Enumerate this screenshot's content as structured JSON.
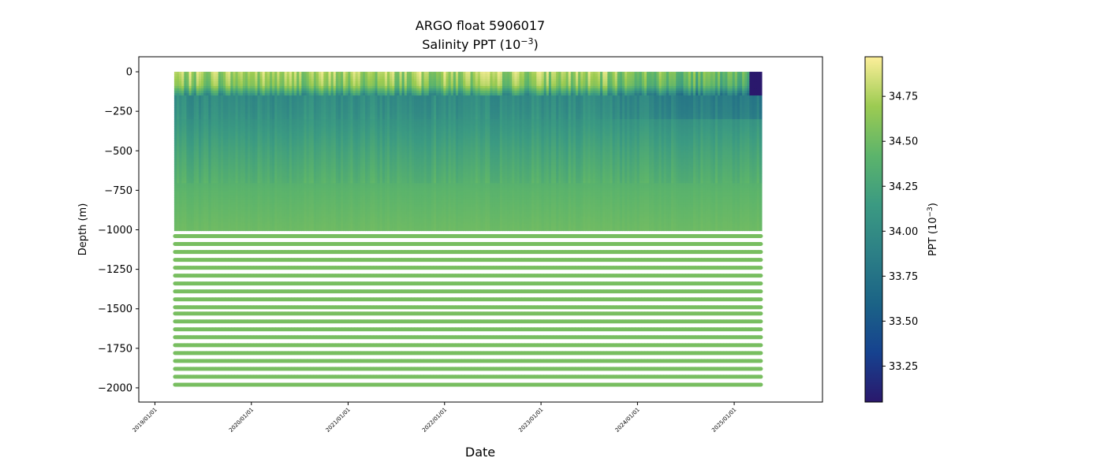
{
  "chart_data": {
    "type": "heatmap",
    "title": "ARGO float 5906017",
    "subtitle_prefix": "Salinity PPT (10",
    "subtitle_exp": "−3",
    "subtitle_suffix": ")",
    "xlabel": "Date",
    "ylabel": "Depth (m)",
    "x_range": [
      "2018-11-01",
      "2025-12-01"
    ],
    "data_x_range": [
      "2019-03-15",
      "2025-04-15"
    ],
    "ylim": [
      -2090,
      95
    ],
    "x_ticks": [
      {
        "date": "2019-01-01",
        "label": "2019/01/01"
      },
      {
        "date": "2020-01-01",
        "label": "2020/01/01"
      },
      {
        "date": "2021-01-01",
        "label": "2021/01/01"
      },
      {
        "date": "2022-01-01",
        "label": "2022/01/01"
      },
      {
        "date": "2023-01-01",
        "label": "2023/01/01"
      },
      {
        "date": "2024-01-01",
        "label": "2024/01/01"
      },
      {
        "date": "2025-01-01",
        "label": "2025/01/01"
      }
    ],
    "y_ticks": [
      {
        "value": 0,
        "label": "0"
      },
      {
        "value": -250,
        "label": "−250"
      },
      {
        "value": -500,
        "label": "−500"
      },
      {
        "value": -750,
        "label": "−750"
      },
      {
        "value": -1000,
        "label": "−1000"
      },
      {
        "value": -1250,
        "label": "−1250"
      },
      {
        "value": -1500,
        "label": "−1500"
      },
      {
        "value": -1750,
        "label": "−1750"
      },
      {
        "value": -2000,
        "label": "−2000"
      }
    ],
    "continuous_depth_range": [
      -990,
      0
    ],
    "discrete_depths": [
      -1040,
      -1090,
      -1140,
      -1190,
      -1240,
      -1290,
      -1340,
      -1390,
      -1440,
      -1490,
      -1530,
      -1580,
      -1630,
      -1680,
      -1730,
      -1780,
      -1830,
      -1880,
      -1930,
      -1980
    ],
    "salinity_profile": [
      {
        "depth": 0,
        "value": 34.72
      },
      {
        "depth": -80,
        "value": 34.6
      },
      {
        "depth": -150,
        "value": 34.0
      },
      {
        "depth": -250,
        "value": 34.05
      },
      {
        "depth": -500,
        "value": 34.25
      },
      {
        "depth": -750,
        "value": 34.42
      },
      {
        "depth": -1000,
        "value": 34.5
      },
      {
        "depth": -2000,
        "value": 34.58
      }
    ],
    "colorbar": {
      "label_prefix": "PPT (10",
      "label_exp": "−3",
      "label_suffix": ")",
      "colormap": "haline",
      "vmin": 33.05,
      "vmax": 34.97,
      "ticks": [
        {
          "value": 33.25,
          "label": "33.25"
        },
        {
          "value": 33.5,
          "label": "33.50"
        },
        {
          "value": 33.75,
          "label": "33.75"
        },
        {
          "value": 34.0,
          "label": "34.00"
        },
        {
          "value": 34.25,
          "label": "34.25"
        },
        {
          "value": 34.5,
          "label": "34.50"
        },
        {
          "value": 34.75,
          "label": "34.75"
        }
      ],
      "stops": [
        "#2a186c",
        "#16428f",
        "#1b6386",
        "#2c7f86",
        "#3b9a82",
        "#5cb46b",
        "#9ccb52",
        "#fdef9a"
      ]
    },
    "grid": false,
    "legend": "none"
  }
}
